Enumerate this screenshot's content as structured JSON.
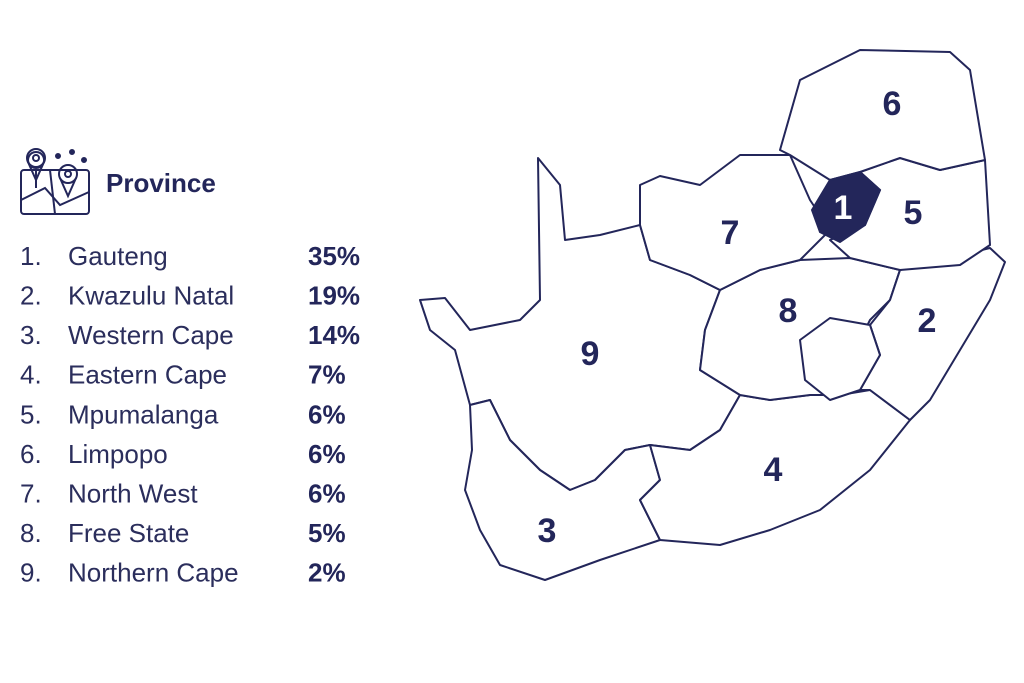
{
  "header": {
    "title": "Province"
  },
  "list": [
    {
      "number": "1.",
      "name": "Gauteng",
      "share": "35%"
    },
    {
      "number": "2.",
      "name": "Kwazulu Natal",
      "share": "19%"
    },
    {
      "number": "3.",
      "name": "Western Cape",
      "share": "14%"
    },
    {
      "number": "4.",
      "name": "Eastern Cape",
      "share": "7%"
    },
    {
      "number": "5.",
      "name": "Mpumalanga",
      "share": "6%"
    },
    {
      "number": "6.",
      "name": "Limpopo",
      "share": "6%"
    },
    {
      "number": "7.",
      "name": "North West",
      "share": "6%"
    },
    {
      "number": "8.",
      "name": "Free State",
      "share": "5%"
    },
    {
      "number": "9.",
      "name": "Northern Cape",
      "share": "2%"
    }
  ],
  "map": {
    "labels": [
      "1",
      "2",
      "3",
      "4",
      "5",
      "6",
      "7",
      "8",
      "9"
    ]
  }
}
